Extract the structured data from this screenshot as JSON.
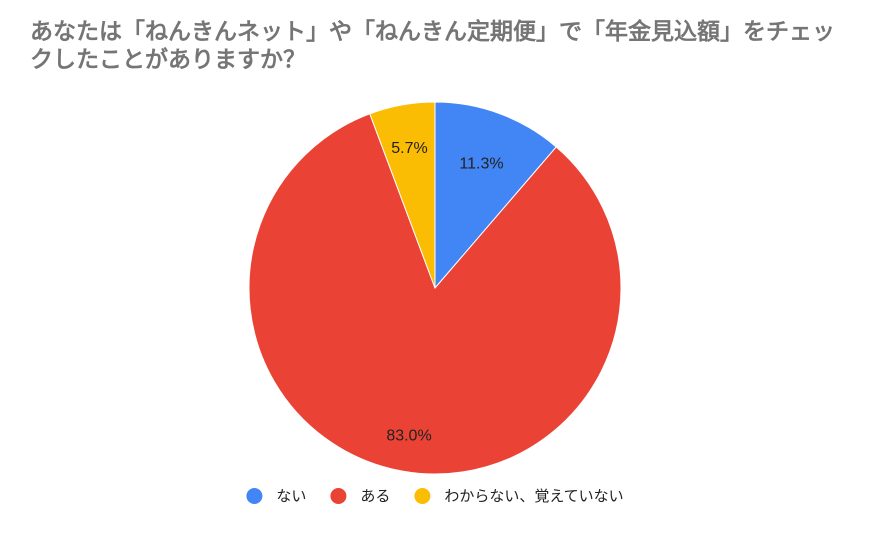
{
  "chart_data": {
    "type": "pie",
    "title": "あなたは「ねんきんネット」や「ねんきん定期便」で「年金見込額」をチェックしたことがありますか？",
    "categories": [
      "ない",
      "ある",
      "わからない、覚えていない"
    ],
    "values": [
      11.3,
      83.0,
      5.7
    ],
    "value_labels": [
      "11.3%",
      "83.0%",
      "5.7%"
    ],
    "colors": [
      "#4285F4",
      "#EA4335",
      "#FBBC04"
    ],
    "legend_position": "bottom"
  }
}
